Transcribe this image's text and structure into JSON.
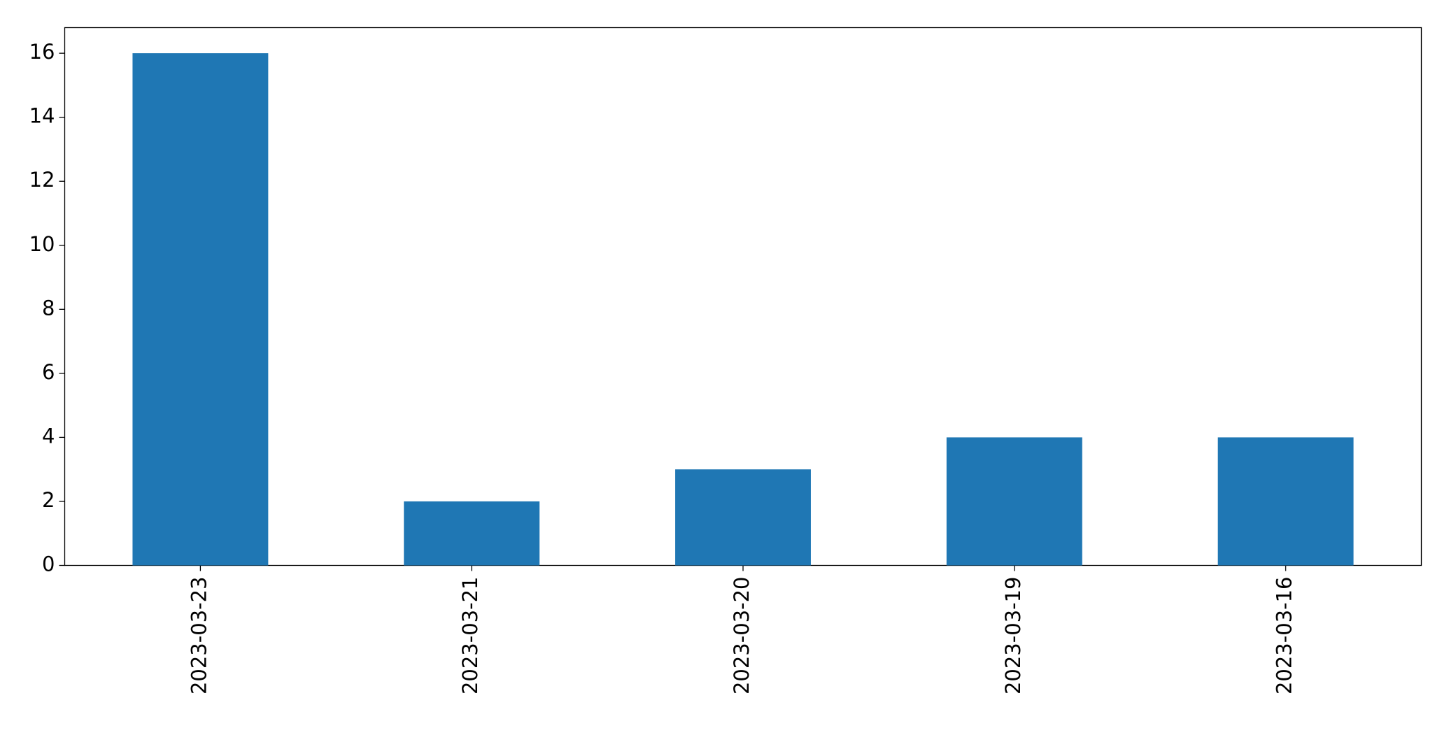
{
  "chart_data": {
    "type": "bar",
    "categories": [
      "2023-03-23",
      "2023-03-21",
      "2023-03-20",
      "2023-03-19",
      "2023-03-16"
    ],
    "values": [
      16,
      2,
      3,
      4,
      4
    ],
    "color": "#1f77b4",
    "ylim": [
      0,
      16.8
    ],
    "yticks": [
      0,
      2,
      4,
      6,
      8,
      10,
      12,
      14,
      16
    ],
    "grid": false
  }
}
